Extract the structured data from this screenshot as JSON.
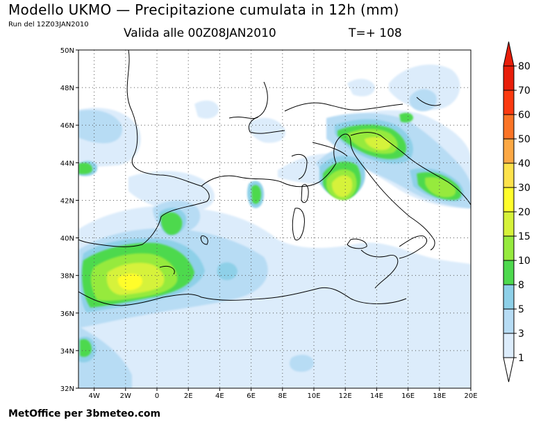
{
  "header": {
    "title": "Modello UKMO — Precipitazione cumulata in 12h (mm)",
    "run": "Run del 12Z03JAN2010",
    "valid": "Valida alle 00Z08JAN2010",
    "lead": "T=+ 108"
  },
  "footer": {
    "credit": "MetOffice per 3bmeteo.com"
  },
  "map": {
    "lat_range": [
      32,
      50
    ],
    "lon_range": [
      -5,
      20
    ],
    "lat_ticks": [
      {
        "value": 50,
        "label": "50N"
      },
      {
        "value": 48,
        "label": "48N"
      },
      {
        "value": 46,
        "label": "46N"
      },
      {
        "value": 44,
        "label": "44N"
      },
      {
        "value": 42,
        "label": "42N"
      },
      {
        "value": 40,
        "label": "40N"
      },
      {
        "value": 38,
        "label": "38N"
      },
      {
        "value": 36,
        "label": "36N"
      },
      {
        "value": 34,
        "label": "34N"
      },
      {
        "value": 32,
        "label": "32N"
      }
    ],
    "lon_ticks": [
      {
        "value": -4,
        "label": "4W"
      },
      {
        "value": -2,
        "label": "2W"
      },
      {
        "value": 0,
        "label": "0"
      },
      {
        "value": 2,
        "label": "2E"
      },
      {
        "value": 4,
        "label": "4E"
      },
      {
        "value": 6,
        "label": "6E"
      },
      {
        "value": 8,
        "label": "8E"
      },
      {
        "value": 10,
        "label": "10E"
      },
      {
        "value": 12,
        "label": "12E"
      },
      {
        "value": 14,
        "label": "14E"
      },
      {
        "value": 16,
        "label": "16E"
      },
      {
        "value": 18,
        "label": "18E"
      },
      {
        "value": 20,
        "label": "20E"
      }
    ],
    "grid": true
  },
  "colorbar": {
    "levels": [
      "1",
      "3",
      "5",
      "8",
      "10",
      "15",
      "20",
      "30",
      "40",
      "50",
      "60",
      "70",
      "80"
    ],
    "colors": [
      "#ffffff",
      "#dcecfb",
      "#b7dcf4",
      "#8ed0e8",
      "#4ed94e",
      "#96ea3e",
      "#d6f23a",
      "#fffd2c",
      "#fde24b",
      "#fca844",
      "#fb7426",
      "#fb3a10",
      "#e81e0a"
    ]
  },
  "precip_colors": {
    "p1": "#dcecfb",
    "p3": "#b7dcf4",
    "p5": "#8ed0e8",
    "p10": "#4ed94e",
    "p15": "#96ea3e",
    "p20": "#d6f23a",
    "p30": "#fffd2c",
    "land": "#ffffff",
    "coast": "#000000"
  }
}
